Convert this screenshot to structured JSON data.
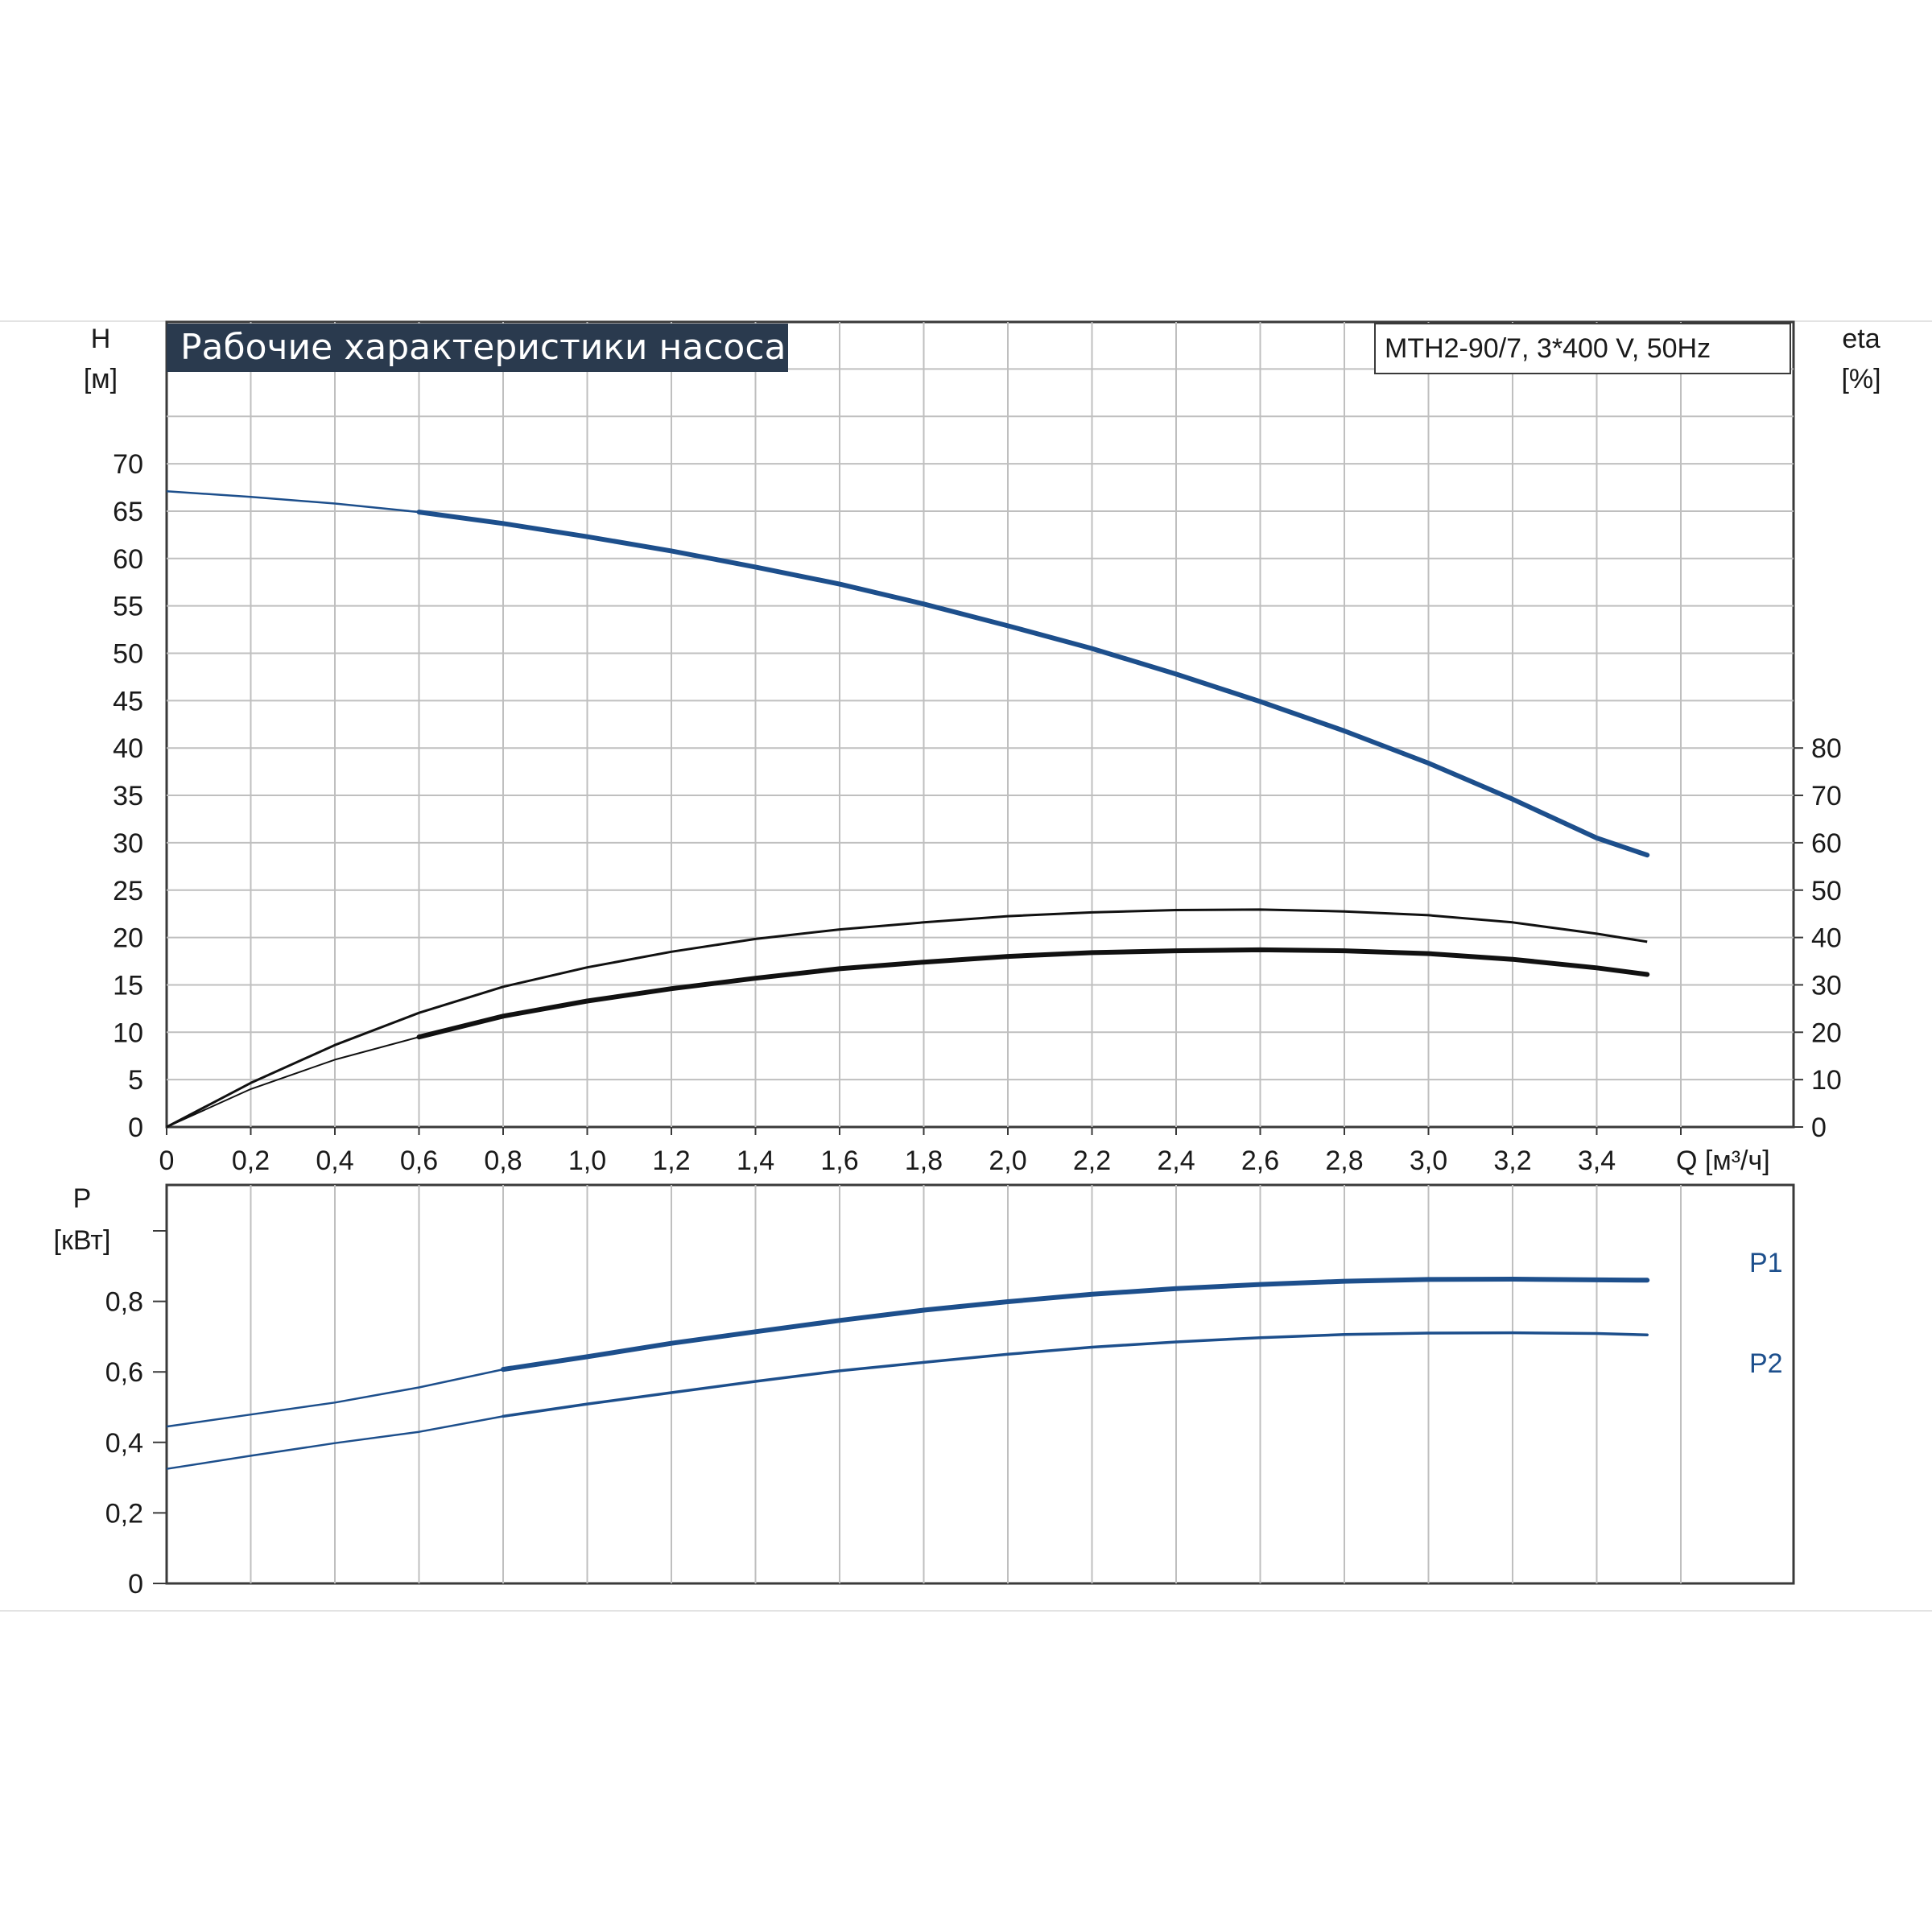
{
  "chart_data": [
    {
      "type": "line",
      "title": "Рабочие характеристики насоса",
      "model": "MTH2-90/7, 3*400 V, 50Hz",
      "colors": {
        "blue": "#1d4f8c",
        "black": "#111111",
        "grid": "#bfbfbf"
      },
      "grid": true,
      "x_axis": {
        "label": "Q [м³/ч]",
        "range": [
          0,
          3.64
        ],
        "ticks": [
          "0",
          "0,2",
          "0,4",
          "0,6",
          "0,8",
          "1,0",
          "1,2",
          "1,4",
          "1,6",
          "1,8",
          "2,0",
          "2,2",
          "2,4",
          "2,6",
          "2,8",
          "3,0",
          "3,2",
          "3,4"
        ]
      },
      "y_axis_left": {
        "label_top": "H",
        "label_unit": "[м]",
        "range": [
          0,
          75
        ],
        "ticks": [
          "0",
          "5",
          "10",
          "15",
          "20",
          "25",
          "30",
          "35",
          "40",
          "45",
          "50",
          "55",
          "60",
          "65",
          "70"
        ]
      },
      "y_axis_right": {
        "label_top": "eta",
        "label_unit": "[%]",
        "range": [
          0,
          80
        ],
        "ticks": [
          "0",
          "10",
          "20",
          "30",
          "40",
          "50",
          "60",
          "70",
          "80"
        ]
      },
      "series": [
        {
          "axis": "left",
          "color": "#1d4f8c",
          "x": [
            0,
            0.2,
            0.4,
            0.6,
            0.8,
            1.0,
            1.2,
            1.4,
            1.6,
            1.8,
            2.0,
            2.2,
            2.4,
            2.6,
            2.8,
            3.0,
            3.2,
            3.4,
            3.52
          ],
          "values": [
            67.1,
            66.5,
            65.8,
            64.9,
            63.7,
            62.3,
            60.8,
            59.1,
            57.3,
            55.2,
            52.9,
            50.5,
            47.8,
            44.9,
            41.8,
            38.4,
            34.6,
            30.5,
            28.7
          ]
        },
        {
          "axis": "right",
          "color": "#111111",
          "x": [
            0,
            0.2,
            0.4,
            0.6,
            0.8,
            1.0,
            1.2,
            1.4,
            1.6,
            1.8,
            2.0,
            2.2,
            2.4,
            2.6,
            2.8,
            3.0,
            3.2,
            3.4,
            3.52
          ],
          "values": [
            0,
            9.3,
            17.3,
            24.1,
            29.6,
            33.7,
            37.0,
            39.7,
            41.7,
            43.2,
            44.5,
            45.3,
            45.8,
            45.9,
            45.5,
            44.7,
            43.2,
            40.8,
            39.1
          ]
        },
        {
          "axis": "left",
          "color": "#111111",
          "x": [
            0,
            0.2,
            0.4,
            0.6,
            0.8,
            1.0,
            1.2,
            1.4,
            1.6,
            1.8,
            2.0,
            2.2,
            2.4,
            2.6,
            2.8,
            3.0,
            3.2,
            3.4,
            3.52
          ],
          "values": [
            0,
            4.0,
            7.1,
            9.5,
            11.7,
            13.3,
            14.6,
            15.7,
            16.7,
            17.4,
            18.0,
            18.4,
            18.6,
            18.7,
            18.6,
            18.3,
            17.7,
            16.8,
            16.1
          ]
        }
      ]
    },
    {
      "type": "line",
      "y_axis": {
        "label_top": "P",
        "label_unit": "[кВт]",
        "range": [
          0,
          1.0
        ],
        "ticks": [
          "0",
          "0,2",
          "0,4",
          "0,6",
          "0,8"
        ]
      },
      "x_axis": {
        "range": [
          0,
          3.64
        ]
      },
      "grid": true,
      "series": [
        {
          "name": "P1",
          "color": "#1d4f8c",
          "x": [
            0,
            0.2,
            0.4,
            0.6,
            0.8,
            1.0,
            1.2,
            1.4,
            1.6,
            1.8,
            2.0,
            2.2,
            2.4,
            2.6,
            2.8,
            3.0,
            3.2,
            3.4,
            3.52
          ],
          "values": [
            0.445,
            0.479,
            0.513,
            0.556,
            0.607,
            0.643,
            0.681,
            0.714,
            0.746,
            0.775,
            0.799,
            0.82,
            0.836,
            0.848,
            0.857,
            0.862,
            0.863,
            0.861,
            0.86
          ]
        },
        {
          "name": "P2",
          "color": "#1d4f8c",
          "x": [
            0,
            0.2,
            0.4,
            0.6,
            0.8,
            1.0,
            1.2,
            1.4,
            1.6,
            1.8,
            2.0,
            2.2,
            2.4,
            2.6,
            2.8,
            3.0,
            3.2,
            3.4,
            3.52
          ],
          "values": [
            0.325,
            0.362,
            0.398,
            0.43,
            0.474,
            0.509,
            0.541,
            0.573,
            0.603,
            0.627,
            0.65,
            0.67,
            0.685,
            0.697,
            0.706,
            0.71,
            0.711,
            0.709,
            0.705
          ]
        }
      ]
    }
  ]
}
